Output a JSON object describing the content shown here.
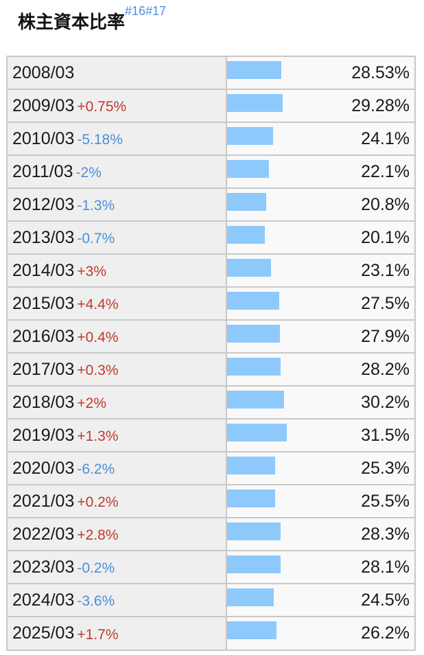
{
  "header": {
    "title": "株主資本比率",
    "refs": [
      "#16",
      "#17"
    ]
  },
  "colors": {
    "bar": "#8ec9fb",
    "positive_delta": "#c0392b",
    "negative_delta": "#4a90d9",
    "label_bg": "#efefef",
    "border": "#c8c8c8"
  },
  "chart_data": {
    "type": "bar",
    "orientation": "horizontal",
    "title": "株主資本比率",
    "categories": [
      "2008/03",
      "2009/03",
      "2010/03",
      "2011/03",
      "2012/03",
      "2013/03",
      "2014/03",
      "2015/03",
      "2016/03",
      "2017/03",
      "2018/03",
      "2019/03",
      "2020/03",
      "2021/03",
      "2022/03",
      "2023/03",
      "2024/03",
      "2025/03"
    ],
    "values": [
      28.53,
      29.28,
      24.1,
      22.1,
      20.8,
      20.1,
      23.1,
      27.5,
      27.9,
      28.2,
      30.2,
      31.5,
      25.3,
      25.5,
      28.3,
      28.1,
      24.5,
      26.2
    ],
    "value_labels": [
      "28.53%",
      "29.28%",
      "24.1%",
      "22.1%",
      "20.8%",
      "20.1%",
      "23.1%",
      "27.5%",
      "27.9%",
      "28.2%",
      "30.2%",
      "31.5%",
      "25.3%",
      "25.5%",
      "28.3%",
      "28.1%",
      "24.5%",
      "26.2%"
    ],
    "deltas": [
      "",
      "+0.75%",
      "-5.18%",
      "-2%",
      "-1.3%",
      "-0.7%",
      "+3%",
      "+4.4%",
      "+0.4%",
      "+0.3%",
      "+2%",
      "+1.3%",
      "-6.2%",
      "+0.2%",
      "+2.8%",
      "-0.2%",
      "-3.6%",
      "+1.7%"
    ],
    "unit": "%",
    "xlim": [
      0,
      100
    ]
  }
}
